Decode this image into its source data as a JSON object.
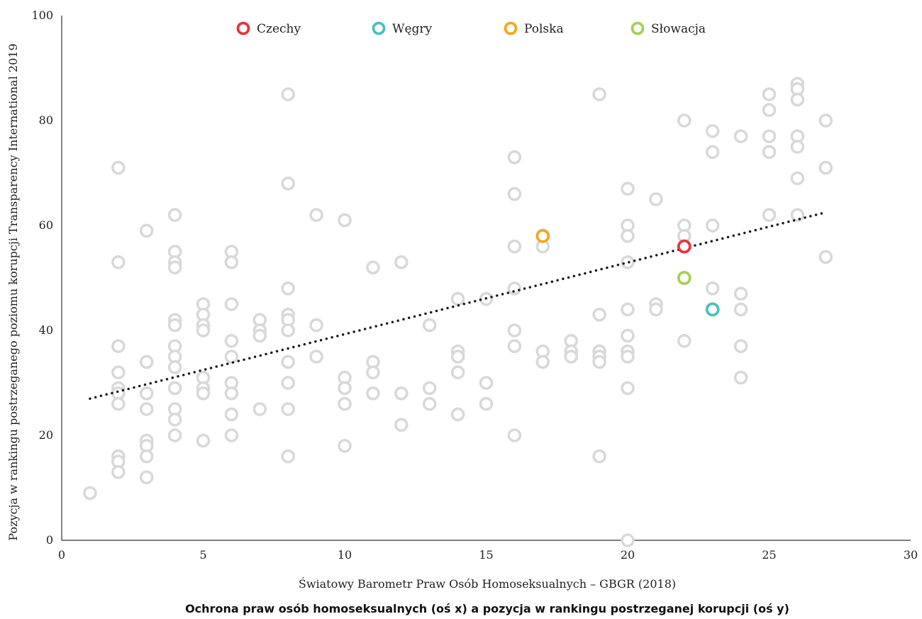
{
  "chart_data": {
    "type": "scatter",
    "title": "Ochrona praw osób homoseksualnych (oś x) a pozycja w rankingu postrzeganej korupcji (oś y)",
    "xlabel": "Światowy Barometr Praw Osób Homoseksualnych – GBGR (2018)",
    "ylabel": "Pozycja w rankingu postrzeganego poziomu korupcji Transparency International 2019",
    "xlim": [
      0,
      30
    ],
    "ylim": [
      0,
      100
    ],
    "x_ticks": [
      "0",
      "5",
      "10",
      "15",
      "20",
      "25",
      "30"
    ],
    "y_ticks": [
      "0",
      "20",
      "40",
      "60",
      "80",
      "100"
    ],
    "grid": false,
    "legend_position": "top-center",
    "colors": {
      "others": "#d9d9d9",
      "Czechy": "#e8333d",
      "Węgry": "#4bbfbf",
      "Polska": "#f5a623",
      "Słowacja": "#a9cf54",
      "trendline": "#1a1a1a"
    },
    "legend": [
      "Czechy",
      "Węgry",
      "Polska",
      "Słowacja"
    ],
    "highlighted": [
      {
        "name": "Czechy",
        "x": 22,
        "y": 56
      },
      {
        "name": "Węgry",
        "x": 23,
        "y": 44
      },
      {
        "name": "Polska",
        "x": 17,
        "y": 58
      },
      {
        "name": "Słowacja",
        "x": 22,
        "y": 50
      }
    ],
    "points": [
      [
        1,
        9
      ],
      [
        2,
        71
      ],
      [
        2,
        53
      ],
      [
        2,
        37
      ],
      [
        2,
        32
      ],
      [
        2,
        29
      ],
      [
        2,
        28
      ],
      [
        2,
        26
      ],
      [
        2,
        16
      ],
      [
        2,
        15
      ],
      [
        2,
        13
      ],
      [
        3,
        59
      ],
      [
        3,
        34
      ],
      [
        3,
        28
      ],
      [
        3,
        25
      ],
      [
        3,
        19
      ],
      [
        3,
        18
      ],
      [
        3,
        16
      ],
      [
        3,
        12
      ],
      [
        4,
        62
      ],
      [
        4,
        55
      ],
      [
        4,
        53
      ],
      [
        4,
        52
      ],
      [
        4,
        42
      ],
      [
        4,
        41
      ],
      [
        4,
        37
      ],
      [
        4,
        35
      ],
      [
        4,
        33
      ],
      [
        4,
        29
      ],
      [
        4,
        25
      ],
      [
        4,
        23
      ],
      [
        4,
        20
      ],
      [
        5,
        45
      ],
      [
        5,
        43
      ],
      [
        5,
        41
      ],
      [
        5,
        40
      ],
      [
        5,
        31
      ],
      [
        5,
        29
      ],
      [
        5,
        28
      ],
      [
        5,
        19
      ],
      [
        6,
        55
      ],
      [
        6,
        53
      ],
      [
        6,
        45
      ],
      [
        6,
        38
      ],
      [
        6,
        35
      ],
      [
        6,
        30
      ],
      [
        6,
        28
      ],
      [
        6,
        24
      ],
      [
        6,
        20
      ],
      [
        7,
        42
      ],
      [
        7,
        40
      ],
      [
        7,
        39
      ],
      [
        7,
        25
      ],
      [
        8,
        85
      ],
      [
        8,
        68
      ],
      [
        8,
        48
      ],
      [
        8,
        43
      ],
      [
        8,
        42
      ],
      [
        8,
        40
      ],
      [
        8,
        34
      ],
      [
        8,
        30
      ],
      [
        8,
        25
      ],
      [
        8,
        16
      ],
      [
        9,
        62
      ],
      [
        9,
        41
      ],
      [
        9,
        35
      ],
      [
        10,
        61
      ],
      [
        10,
        31
      ],
      [
        10,
        29
      ],
      [
        10,
        26
      ],
      [
        10,
        18
      ],
      [
        11,
        52
      ],
      [
        11,
        34
      ],
      [
        11,
        32
      ],
      [
        11,
        28
      ],
      [
        12,
        53
      ],
      [
        12,
        28
      ],
      [
        12,
        22
      ],
      [
        13,
        41
      ],
      [
        13,
        29
      ],
      [
        13,
        26
      ],
      [
        14,
        46
      ],
      [
        14,
        36
      ],
      [
        14,
        35
      ],
      [
        14,
        32
      ],
      [
        14,
        24
      ],
      [
        15,
        46
      ],
      [
        15,
        30
      ],
      [
        15,
        26
      ],
      [
        16,
        73
      ],
      [
        16,
        66
      ],
      [
        16,
        56
      ],
      [
        16,
        48
      ],
      [
        16,
        40
      ],
      [
        16,
        37
      ],
      [
        16,
        20
      ],
      [
        17,
        56
      ],
      [
        17,
        36
      ],
      [
        17,
        34
      ],
      [
        18,
        38
      ],
      [
        18,
        36
      ],
      [
        18,
        35
      ],
      [
        19,
        85
      ],
      [
        19,
        43
      ],
      [
        19,
        36
      ],
      [
        19,
        35
      ],
      [
        19,
        34
      ],
      [
        19,
        16
      ],
      [
        20,
        67
      ],
      [
        20,
        60
      ],
      [
        20,
        58
      ],
      [
        20,
        53
      ],
      [
        20,
        44
      ],
      [
        20,
        39
      ],
      [
        20,
        36
      ],
      [
        20,
        35
      ],
      [
        20,
        29
      ],
      [
        20,
        0
      ],
      [
        21,
        65
      ],
      [
        21,
        45
      ],
      [
        21,
        44
      ],
      [
        22,
        80
      ],
      [
        22,
        60
      ],
      [
        22,
        58
      ],
      [
        22,
        38
      ],
      [
        23,
        78
      ],
      [
        23,
        74
      ],
      [
        23,
        60
      ],
      [
        23,
        48
      ],
      [
        24,
        77
      ],
      [
        24,
        47
      ],
      [
        24,
        44
      ],
      [
        24,
        37
      ],
      [
        24,
        31
      ],
      [
        25,
        85
      ],
      [
        25,
        82
      ],
      [
        25,
        77
      ],
      [
        25,
        74
      ],
      [
        25,
        62
      ],
      [
        26,
        87
      ],
      [
        26,
        86
      ],
      [
        26,
        84
      ],
      [
        26,
        77
      ],
      [
        26,
        75
      ],
      [
        26,
        69
      ],
      [
        26,
        62
      ],
      [
        27,
        80
      ],
      [
        27,
        71
      ],
      [
        27,
        54
      ]
    ],
    "trendline": {
      "style": "dotted",
      "from": [
        1,
        27
      ],
      "to": [
        27,
        62.5
      ]
    }
  }
}
